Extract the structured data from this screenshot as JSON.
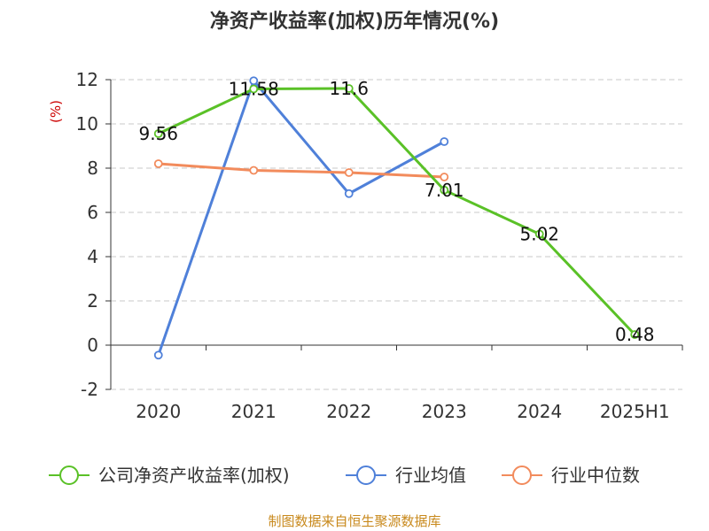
{
  "chart_data": {
    "type": "line",
    "title": "净资产收益率(加权)历年情况(%)",
    "ylabel": "(%)",
    "xlabel": "",
    "categories": [
      "2020",
      "2021",
      "2022",
      "2023",
      "2024",
      "2025H1"
    ],
    "ylim": [
      -2,
      12
    ],
    "yticks": [
      -2,
      0,
      2,
      4,
      6,
      8,
      10,
      12
    ],
    "grid": true,
    "legend_position": "bottom",
    "series": [
      {
        "name": "公司净资产收益率(加权)",
        "color": "#5ac127",
        "values": [
          9.56,
          11.58,
          11.6,
          7.01,
          5.02,
          0.48
        ],
        "labels": [
          "9.56",
          "11.58",
          "11.6",
          "7.01",
          "5.02",
          "0.48"
        ]
      },
      {
        "name": "行业均值",
        "color": "#4f80d9",
        "values": [
          -0.45,
          11.95,
          6.85,
          9.2,
          null,
          null
        ]
      },
      {
        "name": "行业中位数",
        "color": "#f28b5c",
        "values": [
          8.2,
          7.9,
          7.8,
          7.6,
          null,
          null
        ]
      }
    ]
  },
  "source": "制图数据来自恒生聚源数据库"
}
